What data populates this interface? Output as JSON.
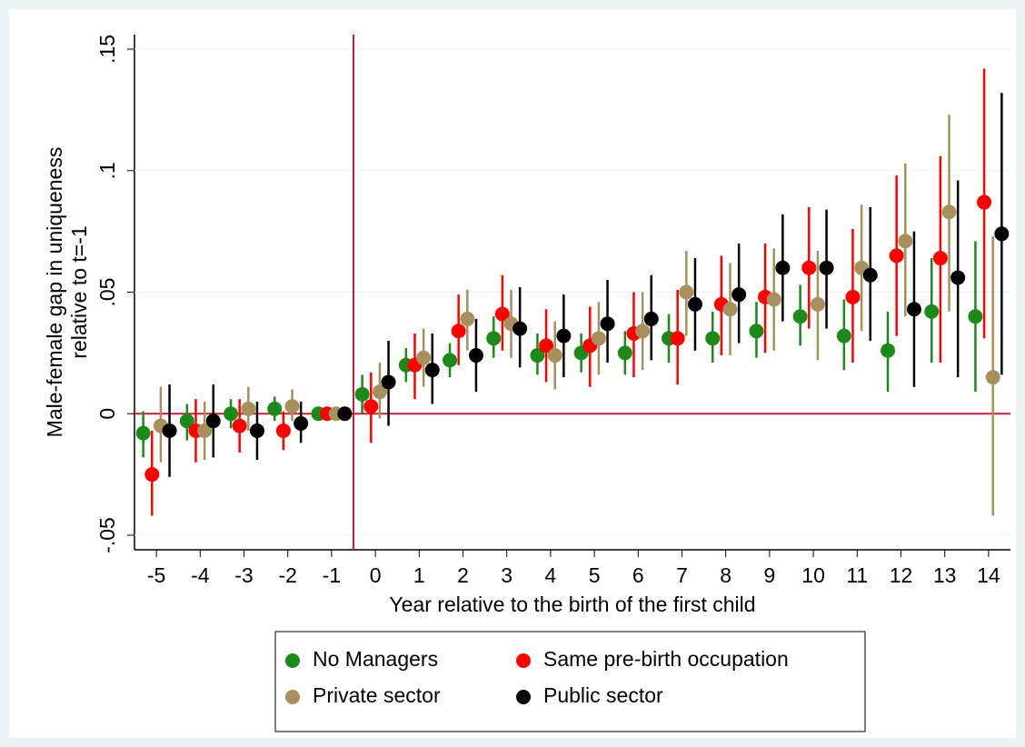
{
  "chart_data": {
    "type": "errorbar",
    "xlabel": "Year relative to the birth of the first child",
    "ylabel": [
      "Male-female gap in uniqueness",
      "relative to t=-1"
    ],
    "x": [
      -5,
      -4,
      -3,
      -2,
      -1,
      0,
      1,
      2,
      3,
      4,
      5,
      6,
      7,
      8,
      9,
      10,
      11,
      12,
      13,
      14
    ],
    "xlim": [
      -5.5,
      14.5
    ],
    "xticks": [
      -5,
      -4,
      -3,
      -2,
      -1,
      0,
      1,
      2,
      3,
      4,
      5,
      6,
      7,
      8,
      9,
      10,
      11,
      12,
      13,
      14
    ],
    "ylim": [
      -0.056,
      0.156
    ],
    "yticks": [
      {
        "value": -0.05,
        "label": "-.05"
      },
      0,
      {
        "value": 0.05,
        "label": ".05"
      },
      {
        "value": 0.1,
        "label": ".1"
      },
      {
        "value": 0.15,
        "label": ".15"
      }
    ],
    "grid": true,
    "vline": -0.5,
    "hline": 0,
    "series": [
      {
        "name": "No Managers",
        "color": "#1b8a1b",
        "values": [
          -0.008,
          -0.003,
          0.0,
          0.002,
          0,
          0.008,
          0.02,
          0.022,
          0.031,
          0.024,
          0.025,
          0.025,
          0.031,
          0.031,
          0.034,
          0.04,
          0.032,
          0.026,
          0.042,
          0.04
        ],
        "lower": [
          -0.018,
          -0.011,
          -0.006,
          -0.003,
          0,
          0.0,
          0.013,
          0.015,
          0.023,
          0.016,
          0.017,
          0.016,
          0.021,
          0.021,
          0.023,
          0.028,
          0.018,
          0.009,
          0.021,
          0.009
        ],
        "upper": [
          0.001,
          0.004,
          0.006,
          0.007,
          0,
          0.016,
          0.027,
          0.029,
          0.04,
          0.033,
          0.033,
          0.034,
          0.041,
          0.042,
          0.046,
          0.053,
          0.047,
          0.042,
          0.064,
          0.071
        ]
      },
      {
        "name": "Same pre-birth occupation",
        "color": "#ff0000",
        "values": [
          -0.025,
          -0.007,
          -0.005,
          -0.007,
          0,
          0.003,
          0.02,
          0.034,
          0.041,
          0.028,
          0.028,
          0.033,
          0.031,
          0.045,
          0.048,
          0.06,
          0.048,
          0.065,
          0.064,
          0.087
        ],
        "lower": [
          -0.042,
          -0.02,
          -0.016,
          -0.015,
          0,
          -0.012,
          0.006,
          0.02,
          0.026,
          0.013,
          0.011,
          0.015,
          0.012,
          0.024,
          0.025,
          0.035,
          0.021,
          0.032,
          0.021,
          0.031
        ],
        "upper": [
          -0.007,
          0.006,
          0.006,
          0.001,
          0,
          0.017,
          0.033,
          0.049,
          0.057,
          0.043,
          0.044,
          0.05,
          0.051,
          0.065,
          0.07,
          0.085,
          0.076,
          0.098,
          0.106,
          0.142
        ]
      },
      {
        "name": "Private sector",
        "color": "#a88f5e",
        "values": [
          -0.005,
          -0.007,
          0.002,
          0.003,
          0,
          0.009,
          0.023,
          0.039,
          0.037,
          0.024,
          0.031,
          0.034,
          0.05,
          0.043,
          0.047,
          0.045,
          0.06,
          0.071,
          0.083,
          0.015
        ],
        "lower": [
          -0.02,
          -0.019,
          -0.007,
          -0.003,
          0,
          -0.002,
          0.011,
          0.026,
          0.023,
          0.01,
          0.016,
          0.018,
          0.032,
          0.024,
          0.026,
          0.022,
          0.034,
          0.04,
          0.042,
          -0.042
        ],
        "upper": [
          0.011,
          0.005,
          0.011,
          0.01,
          0,
          0.021,
          0.035,
          0.051,
          0.051,
          0.038,
          0.046,
          0.05,
          0.067,
          0.062,
          0.068,
          0.067,
          0.086,
          0.103,
          0.123,
          0.073
        ]
      },
      {
        "name": "Public sector",
        "color": "#000000",
        "values": [
          -0.007,
          -0.003,
          -0.007,
          -0.004,
          0,
          0.013,
          0.018,
          0.024,
          0.035,
          0.032,
          0.037,
          0.039,
          0.045,
          0.049,
          0.06,
          0.06,
          0.057,
          0.043,
          0.056,
          0.074
        ],
        "lower": [
          -0.026,
          -0.018,
          -0.019,
          -0.012,
          0,
          -0.005,
          0.004,
          0.009,
          0.019,
          0.015,
          0.021,
          0.022,
          0.026,
          0.029,
          0.038,
          0.035,
          0.03,
          0.011,
          0.015,
          0.016
        ],
        "upper": [
          0.012,
          0.012,
          0.005,
          0.005,
          0,
          0.03,
          0.033,
          0.039,
          0.052,
          0.049,
          0.055,
          0.057,
          0.064,
          0.07,
          0.082,
          0.084,
          0.085,
          0.075,
          0.096,
          0.132
        ]
      }
    ]
  }
}
